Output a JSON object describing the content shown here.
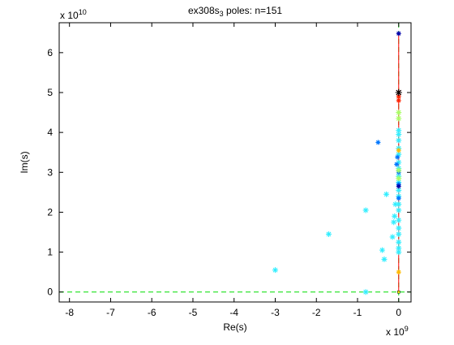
{
  "chart_data": {
    "type": "scatter",
    "title": {
      "prefix": "ex308s",
      "subscript": "3",
      "suffix": " poles: n=151"
    },
    "xlabel": "Re(s)",
    "ylabel": "Im(s)",
    "x_multiplier": {
      "base": "x 10",
      "exp": "9"
    },
    "y_multiplier": {
      "base": "x 10",
      "exp": "10"
    },
    "xlim": [
      -8.25,
      0.3
    ],
    "ylim": [
      -0.25,
      6.75
    ],
    "xticks": [
      -8,
      -7,
      -6,
      -5,
      -4,
      -3,
      -2,
      -1,
      0
    ],
    "xtick_labels": [
      "-8",
      "-7",
      "-6",
      "-5",
      "-4",
      "-3",
      "-2",
      "-1",
      "0"
    ],
    "yticks": [
      0,
      1,
      2,
      3,
      4,
      5,
      6
    ],
    "ytick_labels": [
      "0",
      "1",
      "2",
      "3",
      "4",
      "5",
      "6"
    ],
    "grid": false,
    "reference_lines": [
      {
        "orientation": "horizontal",
        "at": 0,
        "color": "#00dd00",
        "dashed": true
      },
      {
        "orientation": "vertical",
        "at": 0,
        "color": "#00dd00",
        "dashed": true
      },
      {
        "orientation": "vertical_segment",
        "at": 0,
        "from": 0,
        "to": 6.5,
        "color": "#ff0000",
        "dashed": false
      }
    ],
    "series": [
      {
        "color": "#33eeff",
        "marker": "*",
        "size": 7,
        "points": [
          [
            -3.0,
            0.55
          ],
          [
            -1.7,
            1.45
          ],
          [
            -0.8,
            2.05
          ],
          [
            -0.8,
            0.0
          ],
          [
            -0.4,
            1.05
          ],
          [
            -0.35,
            0.82
          ],
          [
            -0.3,
            2.45
          ],
          [
            -0.15,
            1.38
          ],
          [
            -0.12,
            1.75
          ],
          [
            -0.1,
            1.9
          ],
          [
            -0.08,
            2.2
          ],
          [
            0,
            1.0
          ],
          [
            0,
            1.1
          ],
          [
            0,
            1.25
          ],
          [
            0,
            1.45
          ],
          [
            0,
            1.6
          ],
          [
            0,
            1.8
          ],
          [
            0,
            2.05
          ],
          [
            0,
            2.2
          ],
          [
            0,
            2.4
          ],
          [
            0,
            2.55
          ],
          [
            0,
            2.75
          ],
          [
            0,
            2.9
          ],
          [
            0,
            3.1
          ],
          [
            0,
            3.25
          ],
          [
            0,
            3.45
          ],
          [
            0,
            3.6
          ],
          [
            0,
            3.8
          ],
          [
            0,
            3.95
          ],
          [
            0,
            4.05
          ]
        ]
      },
      {
        "color": "#0077ff",
        "marker": "*",
        "size": 6,
        "points": [
          [
            -0.5,
            3.75
          ],
          [
            -0.05,
            3.2
          ],
          [
            -0.03,
            3.38
          ],
          [
            0,
            2.7
          ],
          [
            0,
            2.35
          ],
          [
            0,
            3.0
          ]
        ]
      },
      {
        "color": "#0000aa",
        "marker": "*",
        "size": 6,
        "points": [
          [
            0,
            6.48
          ],
          [
            0,
            2.65
          ]
        ]
      },
      {
        "color": "#ffbb00",
        "marker": "*",
        "size": 6,
        "points": [
          [
            0,
            3.55
          ],
          [
            0,
            0.5
          ]
        ]
      },
      {
        "color": "#aaff66",
        "marker": "*",
        "size": 7,
        "points": [
          [
            0,
            4.35
          ],
          [
            0,
            4.5
          ],
          [
            0,
            3.05
          ],
          [
            0,
            2.85
          ]
        ]
      },
      {
        "color": "#ff2200",
        "marker": "*",
        "size": 6,
        "points": [
          [
            0,
            4.8
          ],
          [
            0,
            4.9
          ]
        ]
      },
      {
        "color": "#990000",
        "marker": "*",
        "size": 8,
        "points": [
          [
            0,
            5.0
          ]
        ]
      },
      {
        "color": "#000000",
        "marker": "*",
        "size": 8,
        "points": [
          [
            0,
            5.0
          ]
        ]
      },
      {
        "color": "#ffee00",
        "marker": "square",
        "size": 3,
        "points": [
          [
            0,
            0.0
          ]
        ]
      }
    ]
  }
}
